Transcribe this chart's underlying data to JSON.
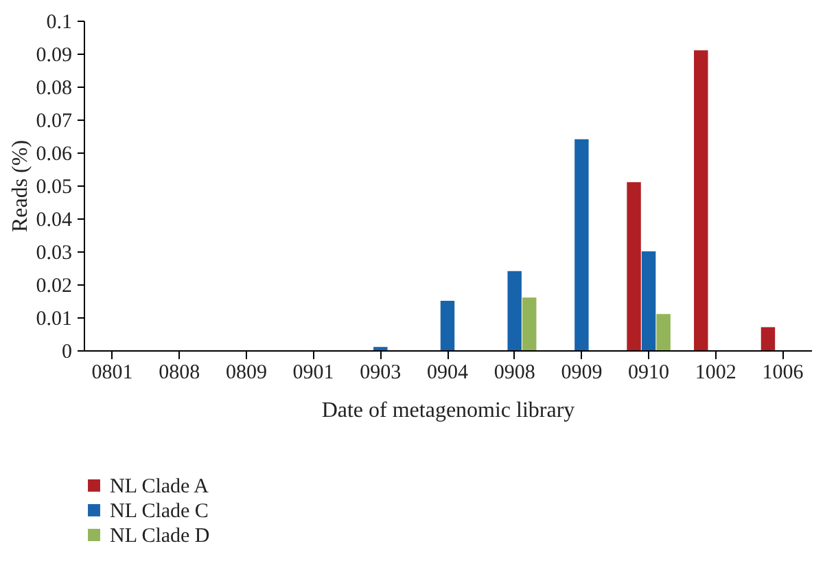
{
  "chart_data": {
    "type": "bar",
    "xlabel": "Date of metagenomic library",
    "ylabel": "Reads (%)",
    "categories": [
      "0801",
      "0808",
      "0809",
      "0901",
      "0903",
      "0904",
      "0908",
      "0909",
      "0910",
      "1002",
      "1006"
    ],
    "series": [
      {
        "name": "NL Clade A",
        "color": "#b01f24",
        "values": [
          0,
          0,
          0,
          0,
          0,
          0,
          0,
          0,
          0.051,
          0.091,
          0.007
        ]
      },
      {
        "name": "NL Clade C",
        "color": "#1764ad",
        "values": [
          0,
          0,
          0,
          0,
          0.001,
          0.015,
          0.024,
          0.064,
          0.03,
          0,
          0
        ]
      },
      {
        "name": "NL Clade D",
        "color": "#93b458",
        "values": [
          0,
          0,
          0,
          0,
          0,
          0,
          0.016,
          0,
          0.011,
          0,
          0
        ]
      }
    ],
    "ylim": [
      0,
      0.1
    ],
    "yticks": [
      0,
      0.01,
      0.02,
      0.03,
      0.04,
      0.05,
      0.06,
      0.07,
      0.08,
      0.09,
      0.1
    ],
    "grid": false,
    "legend": "bottom left"
  }
}
